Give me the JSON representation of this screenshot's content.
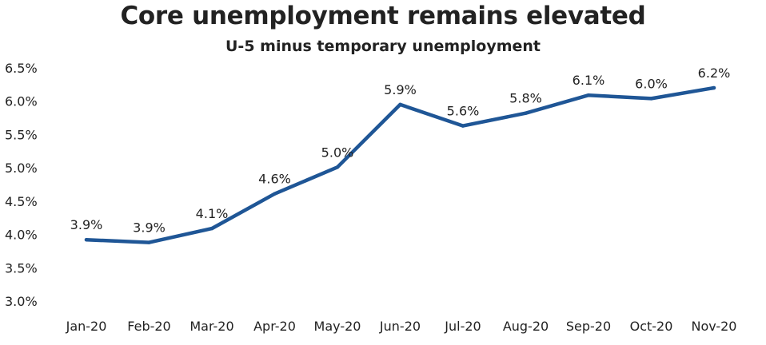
{
  "chart_data": {
    "type": "line",
    "title": "Core unemployment remains elevated",
    "subtitle": "U-5 minus temporary unemployment",
    "xlabel": "",
    "ylabel": "",
    "categories": [
      "Jan-20",
      "Feb-20",
      "Mar-20",
      "Apr-20",
      "May-20",
      "Jun-20",
      "Jul-20",
      "Aug-20",
      "Sep-20",
      "Oct-20",
      "Nov-20"
    ],
    "series": [
      {
        "values": [
          3.92,
          3.88,
          4.09,
          4.61,
          5.01,
          5.95,
          5.63,
          5.82,
          6.09,
          6.04,
          6.2
        ],
        "labels": [
          "3.9%",
          "3.9%",
          "4.1%",
          "4.6%",
          "5.0%",
          "5.9%",
          "5.6%",
          "5.8%",
          "6.1%",
          "6.0%",
          "6.2%"
        ],
        "color": "#1f5696"
      }
    ],
    "ylim": [
      3.0,
      6.5
    ],
    "yticks": [
      3.0,
      3.5,
      4.0,
      4.5,
      5.0,
      5.5,
      6.0,
      6.5
    ],
    "ytick_labels": [
      "3.0%",
      "3.5%",
      "4.0%",
      "4.5%",
      "5.0%",
      "5.5%",
      "6.0%",
      "6.5%"
    ],
    "grid": false,
    "legend": "none"
  }
}
